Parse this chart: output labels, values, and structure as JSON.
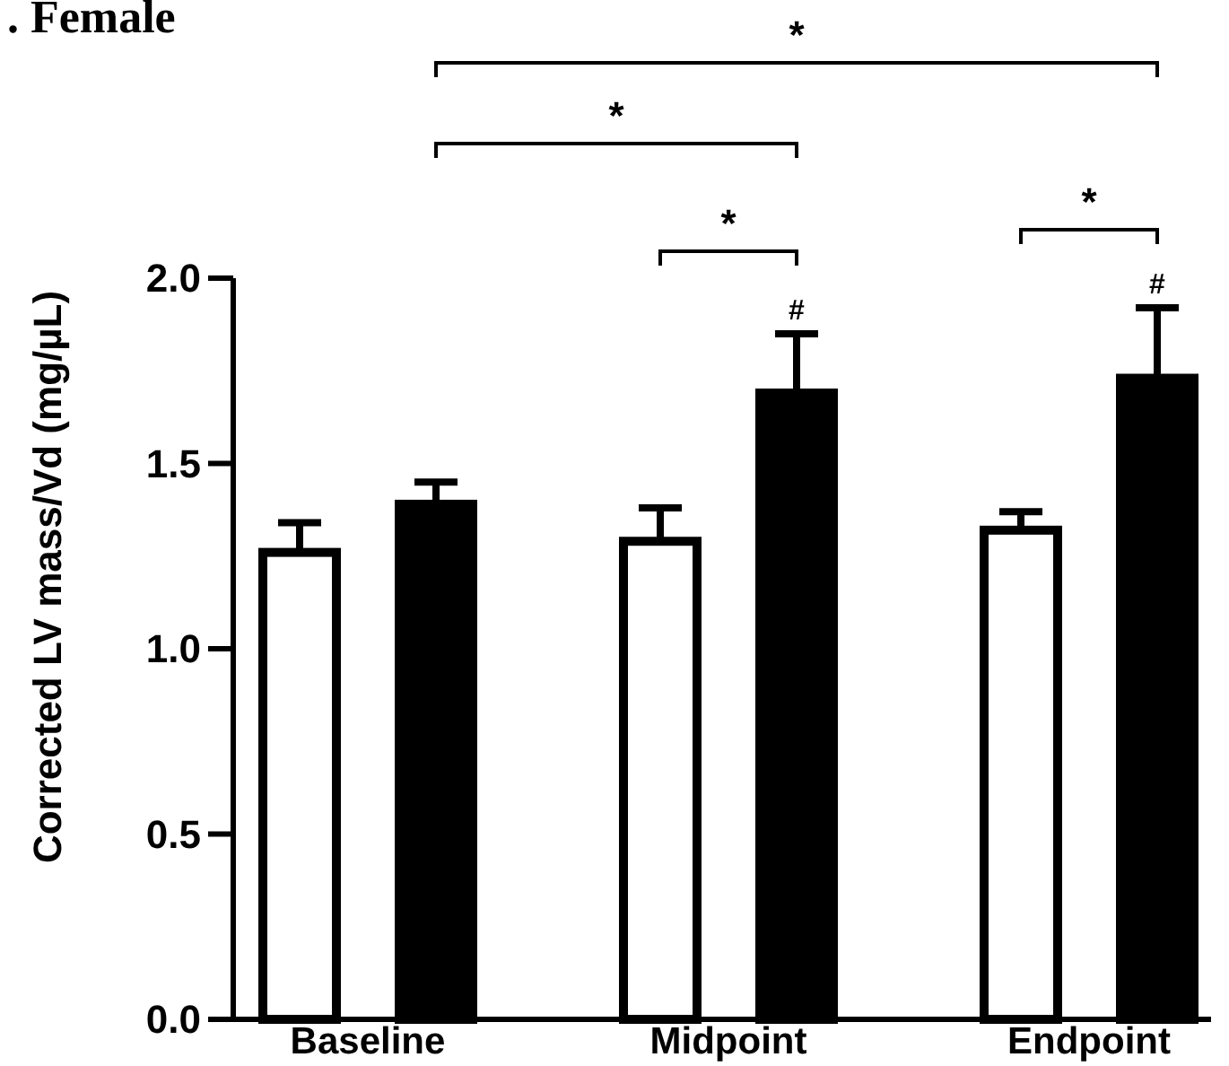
{
  "chart_data": {
    "type": "bar",
    "title": ". Female",
    "ylabel": "Corrected LV mass/Vd (mg/µL)",
    "categories": [
      "Baseline",
      "Midpoint",
      "Endpoint"
    ],
    "series": [
      {
        "color": "#ffffff",
        "values": [
          1.26,
          1.29,
          1.32
        ],
        "errors": [
          [
            1.26,
            1.34
          ],
          [
            1.29,
            1.38
          ],
          [
            1.32,
            1.37
          ]
        ]
      },
      {
        "color": "#000000",
        "values": [
          1.39,
          1.69,
          1.73
        ],
        "errors": [
          [
            1.39,
            1.45
          ],
          [
            1.69,
            1.85
          ],
          [
            1.73,
            1.92
          ]
        ]
      }
    ],
    "ylim": [
      0,
      2
    ],
    "yticks": [
      {
        "value": 0,
        "label": "0.0"
      },
      {
        "value": 0.5,
        "label": "0.5"
      },
      {
        "value": 1,
        "label": "1.0"
      },
      {
        "value": 1.5,
        "label": "1.5"
      },
      {
        "value": 2,
        "label": "2.0"
      }
    ],
    "grid": false,
    "annotations": [
      "*",
      "*",
      "*",
      "*",
      "#",
      "#"
    ]
  }
}
